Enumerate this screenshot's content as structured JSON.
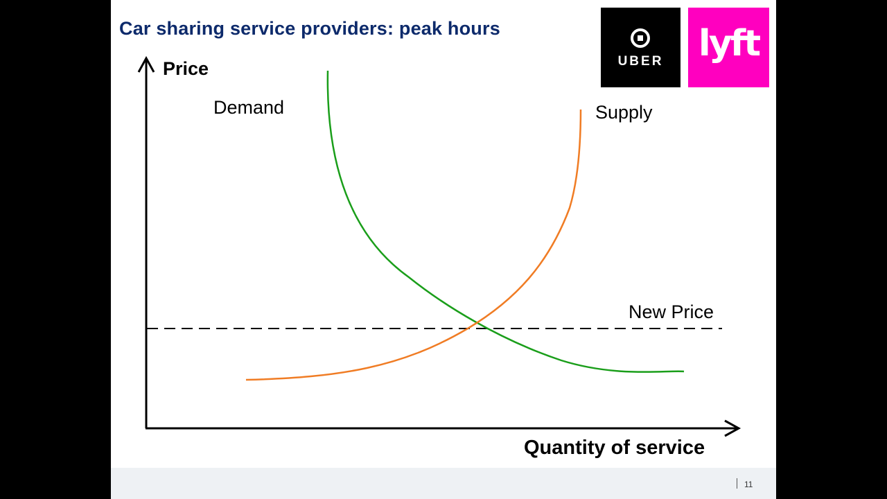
{
  "slide": {
    "title": "Car sharing service providers: peak hours",
    "page_number": "11"
  },
  "logos": {
    "uber": {
      "text": "UBER",
      "background": "#000000",
      "icon": "uber-logo-mark-icon"
    },
    "lyft": {
      "text": "lyft",
      "background": "#ff00bf"
    }
  },
  "diagram": {
    "y_axis_label": "Price",
    "x_axis_label": "Quantity of service",
    "demand_label": "Demand",
    "supply_label": "Supply",
    "new_price_label": "New Price",
    "colors": {
      "demand": "#1a9e1a",
      "supply": "#f07c24",
      "axes": "#000000",
      "title": "#0d2a6b"
    },
    "dashed_line": true
  }
}
